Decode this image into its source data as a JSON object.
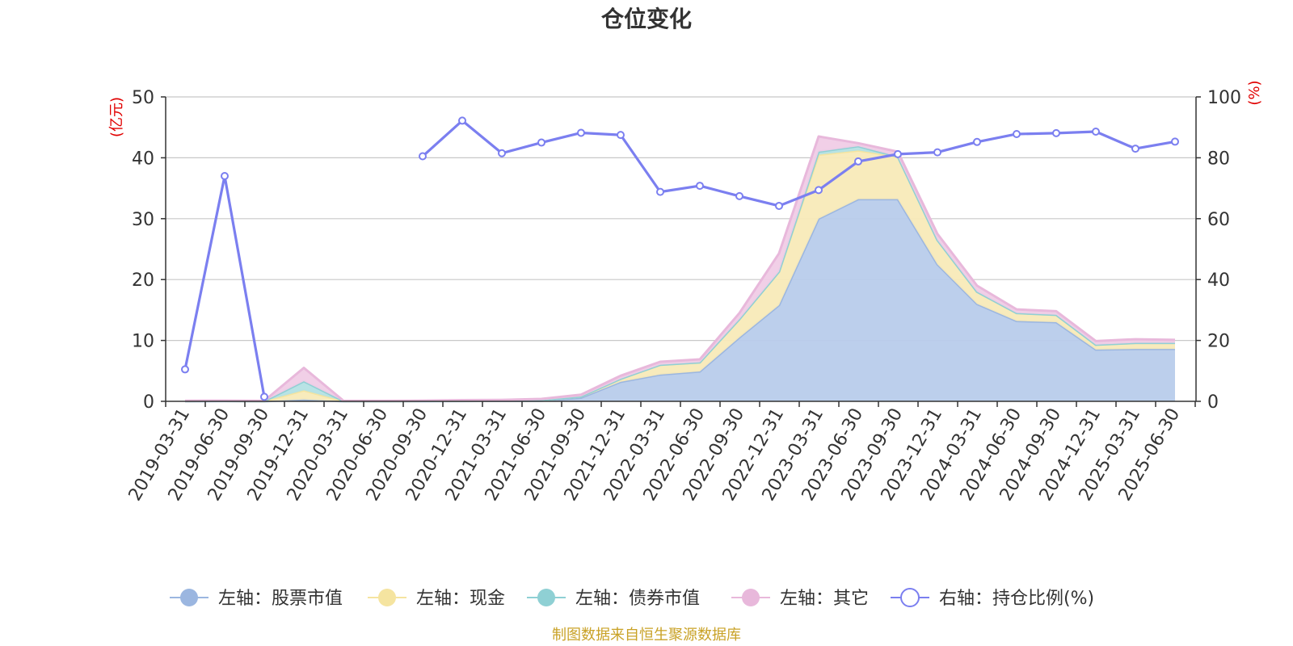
{
  "chart_data": {
    "type": "area",
    "title": "仓位变化",
    "left_axis": {
      "unit": "(亿元)",
      "ylim": [
        0,
        50
      ],
      "ticks": [
        "0",
        "10",
        "20",
        "30",
        "40",
        "50"
      ]
    },
    "right_axis": {
      "unit": "(%)",
      "ylim": [
        0,
        100
      ],
      "ticks": [
        "0",
        "20",
        "40",
        "60",
        "80",
        "100"
      ]
    },
    "categories": [
      "2019-03-31",
      "2019-06-30",
      "2019-09-30",
      "2019-12-31",
      "2020-03-31",
      "2020-06-30",
      "2020-09-30",
      "2020-12-31",
      "2021-03-31",
      "2021-06-30",
      "2021-09-30",
      "2021-12-31",
      "2022-03-31",
      "2022-06-30",
      "2022-09-30",
      "2022-12-31",
      "2023-03-31",
      "2023-06-30",
      "2023-09-30",
      "2023-12-31",
      "2024-03-31",
      "2024-06-30",
      "2024-09-30",
      "2024-12-31",
      "2025-03-31",
      "2025-06-30"
    ],
    "stacked_series": [
      {
        "name": "左轴：股票市值",
        "color": "#9bb6e0",
        "fill": "#b8cceb",
        "values": [
          0.02,
          0.05,
          0.01,
          0.3,
          0.02,
          0.02,
          0.03,
          0.05,
          0.08,
          0.1,
          0.6,
          3.2,
          4.4,
          4.9,
          10.5,
          15.8,
          30.0,
          33.2,
          33.2,
          22.5,
          16.0,
          13.2,
          13.0,
          8.5,
          8.6,
          8.6
        ]
      },
      {
        "name": "左轴：现金",
        "color": "#f5e4a0",
        "fill": "#f8eab8",
        "values": [
          0.03,
          0.02,
          0.02,
          1.5,
          0.03,
          0.02,
          0.03,
          0.05,
          0.05,
          0.1,
          0.2,
          0.5,
          1.6,
          1.5,
          3.0,
          5.5,
          10.5,
          8.0,
          7.0,
          4.0,
          2.0,
          1.3,
          1.2,
          0.8,
          1.0,
          1.0
        ]
      },
      {
        "name": "左轴：债券市值",
        "color": "#8fd0d4",
        "fill": "#b4e2e4",
        "values": [
          0,
          0,
          0,
          1.5,
          0,
          0,
          0,
          0,
          0,
          0,
          0,
          0,
          0,
          0,
          0,
          0,
          0.5,
          0.7,
          0,
          0,
          0,
          0,
          0,
          0,
          0,
          0
        ]
      },
      {
        "name": "左轴：其它",
        "color": "#e8b8db",
        "fill": "#f0cce6",
        "values": [
          0.05,
          0.05,
          0.05,
          2.2,
          0.05,
          0.05,
          0.05,
          0.1,
          0.1,
          0.2,
          0.3,
          0.5,
          0.5,
          0.5,
          1.0,
          3.0,
          2.5,
          0.5,
          0.8,
          1.0,
          1.0,
          0.6,
          0.6,
          0.6,
          0.6,
          0.5
        ]
      }
    ],
    "line_series": {
      "name": "右轴：持仓比例(%)",
      "color": "#7b7ff0",
      "values": [
        10.5,
        74.0,
        1.5,
        null,
        null,
        null,
        80.5,
        92.2,
        81.5,
        85.0,
        88.2,
        87.5,
        68.8,
        70.8,
        67.4,
        64.2,
        69.4,
        78.8,
        81.2,
        81.8,
        85.2,
        87.8,
        88.1,
        88.6,
        83.0,
        85.3
      ]
    },
    "legend": [
      "左轴：股票市值",
      "左轴：现金",
      "左轴：债券市值",
      "左轴：其它",
      "右轴：持仓比例(%)"
    ],
    "legend_placement": "bottom",
    "grid": true
  },
  "source_note": "制图数据来自恒生聚源数据库"
}
